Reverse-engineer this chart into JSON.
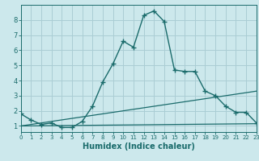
{
  "title": "",
  "xlabel": "Humidex (Indice chaleur)",
  "bg_color": "#cce8ec",
  "grid_color": "#aacdd4",
  "line_color": "#1a6b6b",
  "line1_x": [
    0,
    1,
    2,
    3,
    4,
    5,
    6,
    7,
    8,
    9,
    10,
    11,
    12,
    13,
    14,
    15,
    16,
    17,
    18,
    19,
    20,
    21,
    22,
    23
  ],
  "line1_y": [
    1.8,
    1.4,
    1.1,
    1.2,
    0.9,
    0.9,
    1.3,
    2.3,
    3.9,
    5.1,
    6.6,
    6.2,
    8.3,
    8.6,
    7.9,
    4.7,
    4.6,
    4.6,
    3.3,
    3.0,
    2.3,
    1.9,
    1.9,
    1.2
  ],
  "line2_x": [
    0,
    23
  ],
  "line2_y": [
    1.0,
    3.3
  ],
  "line3_x": [
    0,
    23
  ],
  "line3_y": [
    1.0,
    1.15
  ],
  "xlim": [
    0,
    23
  ],
  "ylim": [
    0.6,
    9.0
  ],
  "yticks": [
    1,
    2,
    3,
    4,
    5,
    6,
    7,
    8
  ],
  "xticks": [
    0,
    1,
    2,
    3,
    4,
    5,
    6,
    7,
    8,
    9,
    10,
    11,
    12,
    13,
    14,
    15,
    16,
    17,
    18,
    19,
    20,
    21,
    22,
    23
  ],
  "xlabel_fontsize": 7,
  "tick_fontsize_x": 5,
  "tick_fontsize_y": 6
}
